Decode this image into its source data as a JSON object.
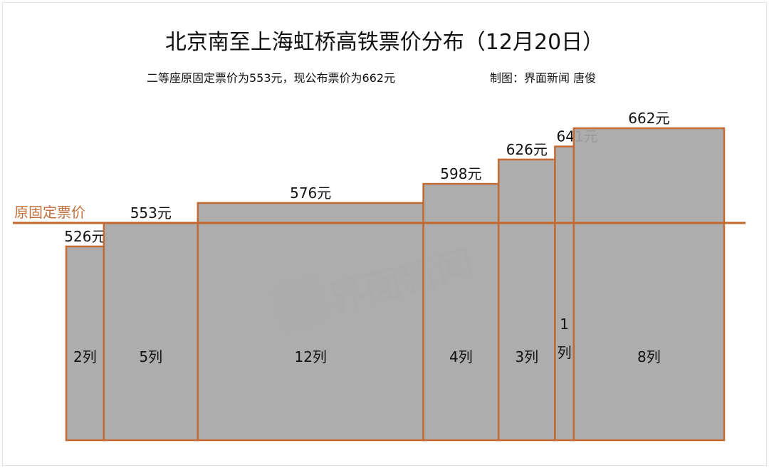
{
  "title": "北京南至上海虹桥高铁票价分布（12月20日）",
  "subtitle": "二等座原固定票价为553元，现公布票价为662元",
  "credit": "制图：界面新闻 唐俊",
  "watermark": "界面新闻",
  "colors": {
    "bar_fill": "#a6a6a6",
    "bar_border": "#c46a34",
    "reference_line": "#c0682e"
  },
  "chart_data": {
    "type": "bar",
    "variable_width": true,
    "categories": [
      "526元",
      "553元",
      "576元",
      "598元",
      "626元",
      "641元",
      "662元"
    ],
    "values": [
      526,
      553,
      576,
      598,
      626,
      641,
      662
    ],
    "widths": [
      2,
      5,
      12,
      4,
      3,
      1,
      8
    ],
    "width_labels": [
      "2列",
      "5列",
      "12列",
      "4列",
      "3列",
      "1列",
      "8列"
    ],
    "reference_line": {
      "value": 553,
      "label": "原固定票价"
    },
    "axes_shown": false,
    "grid": false
  }
}
